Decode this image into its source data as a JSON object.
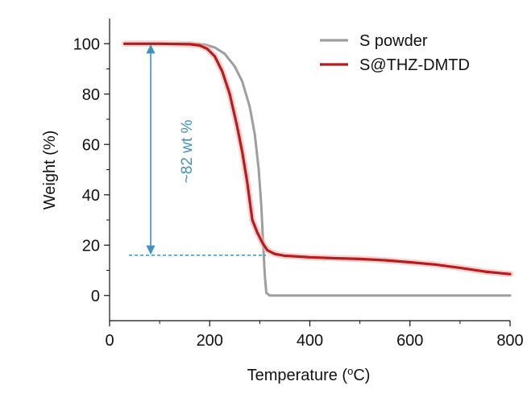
{
  "chart_data": {
    "type": "line",
    "title": "",
    "xlabel": "Temperature (°C)",
    "xlabel_parts": {
      "prefix": "Temperature (",
      "superscript": "o",
      "suffix": "C)"
    },
    "ylabel": "Weight (%)",
    "xlim": [
      0,
      800
    ],
    "ylim": [
      -10,
      110
    ],
    "xticks": [
      0,
      200,
      400,
      600,
      800
    ],
    "xtick_labels": [
      "0",
      "200",
      "400",
      "600",
      "800"
    ],
    "yticks": [
      0,
      20,
      40,
      60,
      80,
      100
    ],
    "ytick_labels": [
      "0",
      "20",
      "40",
      "60",
      "80",
      "100"
    ],
    "grid": false,
    "legend_position": "top-right",
    "series": [
      {
        "name": "S powder",
        "color": "#9e9e9e",
        "x": [
          30,
          100,
          160,
          190,
          210,
          230,
          250,
          265,
          280,
          290,
          298,
          303,
          307,
          310,
          313,
          320,
          400,
          500,
          600,
          700,
          800
        ],
        "y": [
          100,
          100,
          100,
          99.7,
          98.5,
          96,
          91,
          85,
          75,
          64,
          50,
          36,
          20,
          8,
          1,
          0,
          0,
          0,
          0,
          0,
          0
        ]
      },
      {
        "name": "S@THZ-DMTD",
        "color": "#b81c1c",
        "x": [
          30,
          100,
          160,
          180,
          195,
          210,
          225,
          240,
          255,
          265,
          275,
          285,
          295,
          305,
          315,
          330,
          350,
          400,
          450,
          500,
          550,
          600,
          650,
          700,
          750,
          800
        ],
        "y": [
          100,
          100,
          99.8,
          99.3,
          98,
          95,
          89,
          80,
          67,
          57,
          45,
          30,
          25,
          21,
          18,
          16.5,
          15.8,
          15.2,
          14.8,
          14.5,
          14,
          13.2,
          12.3,
          11,
          9.5,
          8.5
        ]
      }
    ],
    "annotations": [
      {
        "text": "~82 wt %",
        "type": "double-arrow",
        "x": 80,
        "y_from": 100,
        "y_to": 16,
        "color": "#3d93c4"
      },
      {
        "type": "dashed-line",
        "x_from": 35,
        "x_to": 310,
        "y": 16,
        "color": "#3d93c4"
      }
    ]
  },
  "colors": {
    "axis": "#111111",
    "annotation": "#3d93c4"
  }
}
